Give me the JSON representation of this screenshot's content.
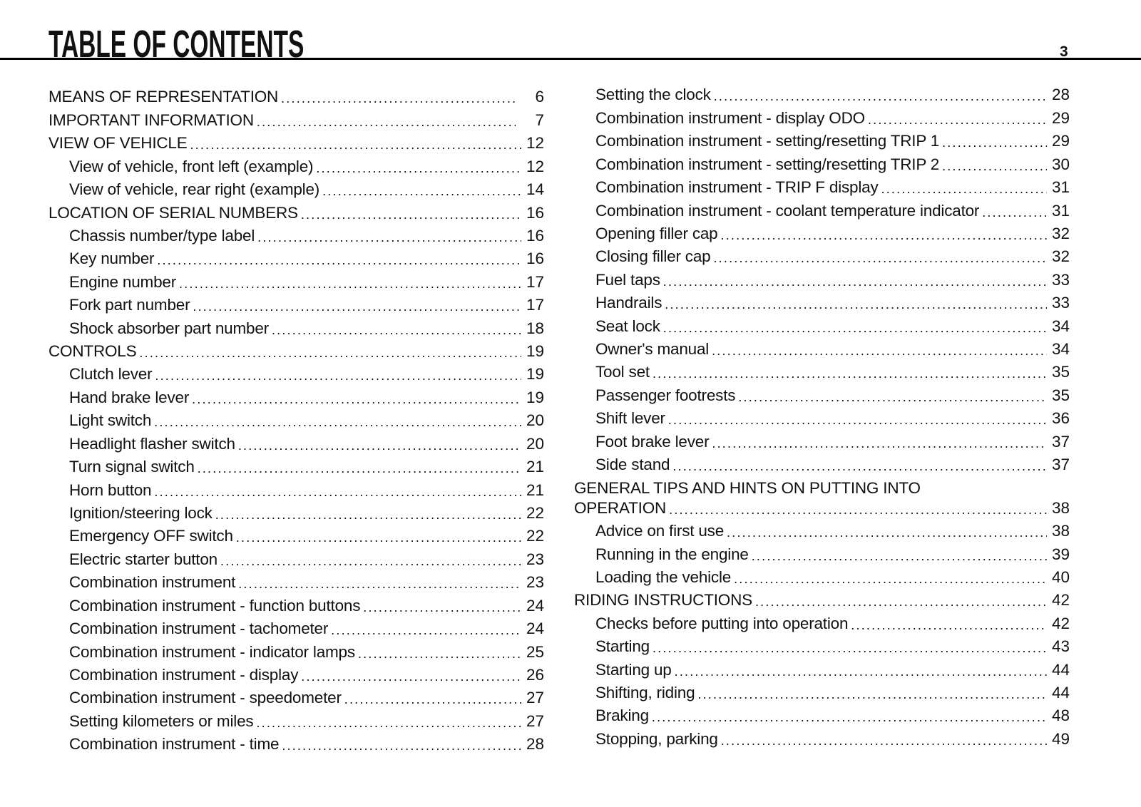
{
  "header": {
    "title": "TABLE OF CONTENTS",
    "page_number": "3"
  },
  "left_column": [
    {
      "label": "MEANS OF REPRESENTATION",
      "page": "6",
      "level": 1
    },
    {
      "label": "IMPORTANT INFORMATION",
      "page": "7",
      "level": 1
    },
    {
      "label": "VIEW OF VEHICLE",
      "page": "12",
      "level": 1
    },
    {
      "label": "View of vehicle, front left (example)",
      "page": "12",
      "level": 2
    },
    {
      "label": "View of vehicle, rear right (example)",
      "page": "14",
      "level": 2
    },
    {
      "label": "LOCATION OF SERIAL NUMBERS",
      "page": "16",
      "level": 1
    },
    {
      "label": "Chassis number/type label",
      "page": "16",
      "level": 2
    },
    {
      "label": "Key number",
      "page": "16",
      "level": 2
    },
    {
      "label": "Engine number",
      "page": "17",
      "level": 2
    },
    {
      "label": "Fork part number",
      "page": "17",
      "level": 2
    },
    {
      "label": "Shock absorber part number",
      "page": "18",
      "level": 2
    },
    {
      "label": "CONTROLS",
      "page": "19",
      "level": 1
    },
    {
      "label": "Clutch lever",
      "page": "19",
      "level": 2
    },
    {
      "label": "Hand brake lever",
      "page": "19",
      "level": 2
    },
    {
      "label": "Light switch",
      "page": "20",
      "level": 2
    },
    {
      "label": "Headlight flasher switch",
      "page": "20",
      "level": 2
    },
    {
      "label": "Turn signal switch",
      "page": "21",
      "level": 2
    },
    {
      "label": "Horn button",
      "page": "21",
      "level": 2
    },
    {
      "label": "Ignition/steering lock",
      "page": "22",
      "level": 2
    },
    {
      "label": "Emergency OFF switch",
      "page": "22",
      "level": 2
    },
    {
      "label": "Electric starter button",
      "page": "23",
      "level": 2
    },
    {
      "label": "Combination instrument",
      "page": "23",
      "level": 2
    },
    {
      "label": "Combination instrument - function buttons",
      "page": "24",
      "level": 2
    },
    {
      "label": "Combination instrument - tachometer",
      "page": "24",
      "level": 2
    },
    {
      "label": "Combination instrument - indicator lamps",
      "page": "25",
      "level": 2
    },
    {
      "label": "Combination instrument - display",
      "page": "26",
      "level": 2
    },
    {
      "label": "Combination instrument - speedometer",
      "page": "27",
      "level": 2
    },
    {
      "label": "Setting kilometers or miles",
      "page": "27",
      "level": 2
    },
    {
      "label": "Combination instrument - time",
      "page": "28",
      "level": 2
    }
  ],
  "right_column": [
    {
      "label": "Setting the clock",
      "page": "28",
      "level": 2
    },
    {
      "label": "Combination instrument - display ODO",
      "page": "29",
      "level": 2
    },
    {
      "label": "Combination instrument - setting/resetting TRIP 1",
      "page": "29",
      "level": 2
    },
    {
      "label": "Combination instrument - setting/resetting TRIP 2",
      "page": "30",
      "level": 2
    },
    {
      "label": "Combination instrument - TRIP F display",
      "page": "31",
      "level": 2
    },
    {
      "label": "Combination instrument - coolant temperature indicator",
      "page": "31",
      "level": 2
    },
    {
      "label": "Opening filler cap",
      "page": "32",
      "level": 2
    },
    {
      "label": "Closing filler cap",
      "page": "32",
      "level": 2
    },
    {
      "label": "Fuel taps",
      "page": "33",
      "level": 2
    },
    {
      "label": "Handrails",
      "page": "33",
      "level": 2
    },
    {
      "label": "Seat lock",
      "page": "34",
      "level": 2
    },
    {
      "label": "Owner's manual",
      "page": "34",
      "level": 2
    },
    {
      "label": "Tool set",
      "page": "35",
      "level": 2
    },
    {
      "label": "Passenger footrests",
      "page": "35",
      "level": 2
    },
    {
      "label": "Shift lever",
      "page": "36",
      "level": 2
    },
    {
      "label": "Foot brake lever",
      "page": "37",
      "level": 2
    },
    {
      "label": "Side stand",
      "page": "37",
      "level": 2
    },
    {
      "label": "GENERAL TIPS AND HINTS ON PUTTING INTO",
      "label_cont": "OPERATION",
      "page": "38",
      "level": 1
    },
    {
      "label": "Advice on first use",
      "page": "38",
      "level": 2
    },
    {
      "label": "Running in the engine",
      "page": "39",
      "level": 2
    },
    {
      "label": "Loading the vehicle",
      "page": "40",
      "level": 2
    },
    {
      "label": "RIDING INSTRUCTIONS",
      "page": "42",
      "level": 1
    },
    {
      "label": "Checks before putting into operation",
      "page": "42",
      "level": 2
    },
    {
      "label": "Starting",
      "page": "43",
      "level": 2
    },
    {
      "label": "Starting up",
      "page": "44",
      "level": 2
    },
    {
      "label": "Shifting, riding",
      "page": "44",
      "level": 2
    },
    {
      "label": "Braking",
      "page": "48",
      "level": 2
    },
    {
      "label": "Stopping, parking",
      "page": "49",
      "level": 2
    }
  ]
}
